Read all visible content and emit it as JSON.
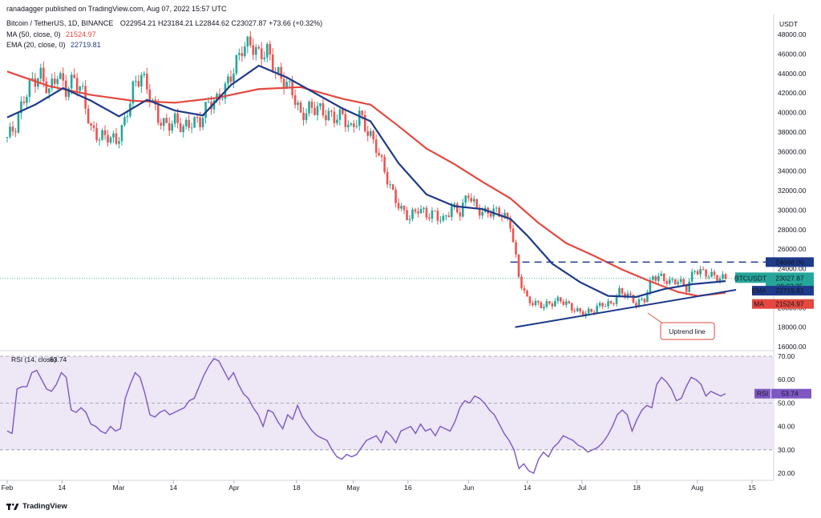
{
  "header": {
    "publisher": "ranadagger published on TradingView.com, Aug 07, 2022 15:57 UTC",
    "symbol": "Bitcoin / TetherUS, 1D, BINANCE",
    "ohlc": "O22954.21  H23184.21  L22844.62  C23027.87  +73.66 (+0.32%)",
    "ma_label": "MA (50, close, 0)",
    "ma_value": "21524.97",
    "ema_label": "EMA (20, close, 0)",
    "ema_value": "22719.81"
  },
  "colors": {
    "up": "#26a69a",
    "down": "#ef5350",
    "ema": "#1e3a8a",
    "ma": "#e5483f",
    "rsi": "#7e57c2",
    "rsi_band": "#ede7f6",
    "resistance": "#1e3a8a",
    "trendline": "#1e3a8a",
    "annotation_border": "#e5483f"
  },
  "footer": {
    "brand": "TradingView"
  },
  "chart_data": [
    {
      "type": "candlestick",
      "title": "Bitcoin / TetherUS, 1D, BINANCE",
      "ylabel": "USDT",
      "ylim": [
        16000,
        48000
      ],
      "y_ticks": [
        "48000.00",
        "46000.00",
        "44000.00",
        "42000.00",
        "40000.00",
        "38000.00",
        "36000.00",
        "34000.00",
        "32000.00",
        "30000.00",
        "28000.00",
        "26000.00",
        "24000.00",
        "20000.00",
        "18000.00",
        "16000.00"
      ],
      "x_ticks": [
        "Feb",
        "14",
        "Mar",
        "14",
        "Apr",
        "18",
        "May",
        "16",
        "Jun",
        "14",
        "Jul",
        "18",
        "Aug",
        "15"
      ],
      "last_price": "23027.87",
      "countdown": "08:02:35",
      "symbol_tag": "BTCUSDT",
      "resistance_level": "24668.00",
      "ema_tag": "22719.81",
      "ma_tag": "21524.97",
      "ema_tag_label": "EMA",
      "ma_tag_label": "MA",
      "annotation": "Uptrend line",
      "close_path": [
        [
          0,
          37500
        ],
        [
          3,
          38600
        ],
        [
          6,
          41500
        ],
        [
          9,
          43200
        ],
        [
          12,
          43800
        ],
        [
          15,
          42200
        ],
        [
          18,
          44000
        ],
        [
          21,
          42300
        ],
        [
          24,
          43500
        ],
        [
          27,
          42000
        ],
        [
          30,
          38200
        ],
        [
          33,
          37500
        ],
        [
          36,
          37600
        ],
        [
          39,
          37000
        ],
        [
          42,
          39000
        ],
        [
          45,
          42500
        ],
        [
          48,
          43900
        ],
        [
          51,
          41800
        ],
        [
          54,
          39400
        ],
        [
          57,
          38600
        ],
        [
          60,
          39200
        ],
        [
          63,
          38400
        ],
        [
          66,
          39000
        ],
        [
          69,
          39100
        ],
        [
          72,
          41000
        ],
        [
          75,
          41200
        ],
        [
          78,
          42500
        ],
        [
          81,
          44400
        ],
        [
          84,
          46600
        ],
        [
          87,
          47100
        ],
        [
          90,
          45900
        ],
        [
          93,
          46300
        ],
        [
          96,
          44200
        ],
        [
          99,
          43200
        ],
        [
          102,
          42200
        ],
        [
          105,
          39600
        ],
        [
          108,
          40400
        ],
        [
          111,
          40500
        ],
        [
          114,
          39800
        ],
        [
          117,
          39500
        ],
        [
          120,
          39700
        ],
        [
          123,
          38200
        ],
        [
          126,
          39800
        ],
        [
          129,
          38000
        ],
        [
          132,
          36500
        ],
        [
          135,
          34000
        ],
        [
          138,
          31600
        ],
        [
          141,
          30000
        ],
        [
          144,
          29200
        ],
        [
          147,
          30200
        ],
        [
          150,
          29500
        ],
        [
          153,
          29600
        ],
        [
          156,
          28900
        ],
        [
          159,
          30300
        ],
        [
          162,
          29800
        ],
        [
          165,
          31700
        ],
        [
          168,
          30100
        ],
        [
          171,
          29700
        ],
        [
          174,
          29900
        ],
        [
          177,
          29600
        ],
        [
          180,
          28600
        ],
        [
          183,
          23200
        ],
        [
          186,
          20800
        ],
        [
          189,
          20400
        ],
        [
          192,
          20200
        ],
        [
          195,
          20500
        ],
        [
          198,
          20800
        ],
        [
          201,
          20200
        ],
        [
          204,
          19600
        ],
        [
          207,
          19400
        ],
        [
          210,
          19800
        ],
        [
          213,
          20400
        ],
        [
          216,
          20300
        ],
        [
          219,
          21600
        ],
        [
          222,
          21300
        ],
        [
          225,
          20400
        ],
        [
          228,
          20900
        ],
        [
          231,
          23200
        ],
        [
          234,
          23100
        ],
        [
          237,
          22600
        ],
        [
          240,
          22800
        ],
        [
          243,
          22000
        ],
        [
          246,
          23900
        ],
        [
          249,
          23600
        ],
        [
          252,
          23300
        ],
        [
          255,
          23000
        ],
        [
          257,
          23028
        ]
      ],
      "ema20": [
        [
          0,
          39500
        ],
        [
          10,
          40800
        ],
        [
          20,
          42500
        ],
        [
          30,
          41200
        ],
        [
          40,
          39600
        ],
        [
          50,
          41300
        ],
        [
          60,
          40200
        ],
        [
          70,
          39700
        ],
        [
          80,
          42800
        ],
        [
          90,
          44800
        ],
        [
          100,
          43600
        ],
        [
          110,
          42000
        ],
        [
          120,
          40400
        ],
        [
          130,
          39100
        ],
        [
          140,
          34800
        ],
        [
          150,
          31600
        ],
        [
          160,
          30400
        ],
        [
          170,
          30100
        ],
        [
          180,
          29100
        ],
        [
          186,
          27400
        ],
        [
          195,
          24500
        ],
        [
          205,
          22600
        ],
        [
          215,
          21200
        ],
        [
          225,
          21100
        ],
        [
          235,
          21900
        ],
        [
          245,
          22400
        ],
        [
          257,
          22720
        ]
      ],
      "ma50": [
        [
          0,
          44200
        ],
        [
          15,
          42700
        ],
        [
          30,
          41800
        ],
        [
          45,
          41200
        ],
        [
          60,
          41000
        ],
        [
          75,
          41500
        ],
        [
          90,
          42400
        ],
        [
          105,
          42600
        ],
        [
          120,
          41400
        ],
        [
          130,
          40800
        ],
        [
          140,
          38600
        ],
        [
          150,
          36300
        ],
        [
          160,
          34700
        ],
        [
          170,
          32900
        ],
        [
          180,
          31200
        ],
        [
          190,
          28700
        ],
        [
          200,
          26600
        ],
        [
          210,
          25300
        ],
        [
          220,
          23900
        ],
        [
          230,
          22700
        ],
        [
          240,
          21600
        ],
        [
          247,
          21200
        ],
        [
          257,
          21525
        ]
      ],
      "resistance_start_day": 180,
      "trendline": [
        [
          184,
          18000
        ],
        [
          257,
          21500
        ]
      ]
    },
    {
      "type": "line",
      "title": "RSI (14, close)",
      "value_label": "53.74",
      "tag_label": "RSI",
      "ylim": [
        20,
        70
      ],
      "y_ticks": [
        "70.00",
        "60.00",
        "50.00",
        "40.00",
        "30.00",
        "20.00"
      ],
      "values": [
        38,
        37,
        56,
        57,
        57,
        63,
        64,
        60,
        56,
        55,
        58,
        63,
        61,
        47,
        46,
        48,
        46,
        41,
        40,
        38,
        37,
        40,
        38,
        39,
        52,
        58,
        63,
        61,
        54,
        45,
        44,
        46,
        47,
        45,
        46,
        47,
        48,
        51,
        52,
        57,
        62,
        66,
        69,
        68,
        64,
        60,
        63,
        58,
        54,
        52,
        48,
        45,
        40,
        47,
        46,
        42,
        39,
        45,
        43,
        49,
        44,
        41,
        38,
        36,
        35,
        34,
        30,
        27,
        26,
        28,
        27,
        28,
        31,
        34,
        35,
        36,
        33,
        38,
        36,
        33,
        38,
        39,
        40,
        37,
        41,
        38,
        39,
        36,
        40,
        39,
        38,
        42,
        48,
        51,
        50,
        53,
        52,
        50,
        47,
        45,
        41,
        37,
        34,
        30,
        22,
        24,
        21,
        20,
        26,
        29,
        27,
        31,
        33,
        36,
        35,
        34,
        32,
        31,
        29,
        30,
        31,
        33,
        36,
        40,
        45,
        47,
        45,
        38,
        43,
        47,
        49,
        48,
        58,
        61,
        59,
        56,
        51,
        52,
        57,
        61,
        60,
        58,
        53,
        55,
        54,
        53,
        54
      ]
    }
  ]
}
